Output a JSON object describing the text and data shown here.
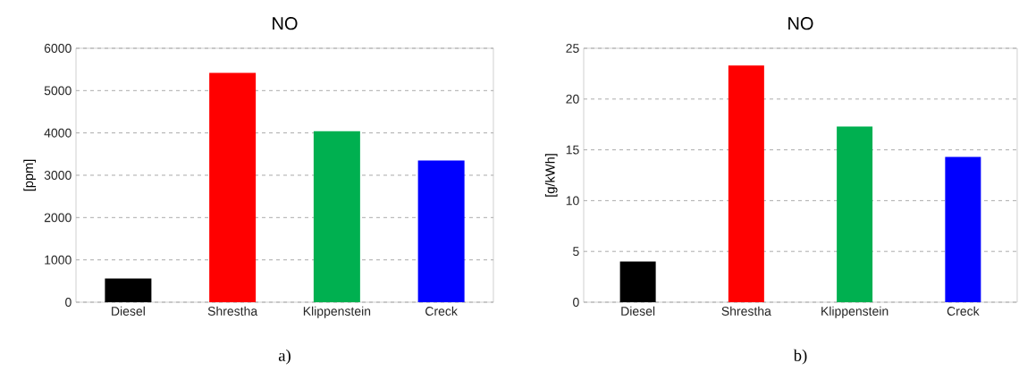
{
  "chart_data": [
    {
      "type": "bar",
      "title": "NO",
      "ylabel": "[ppm]",
      "categories": [
        "Diesel",
        "Shrestha",
        "Klippenstein",
        "Creck"
      ],
      "values": [
        560,
        5420,
        4040,
        3350
      ],
      "colors": [
        "#000000",
        "#ff0000",
        "#00b050",
        "#0000ff"
      ],
      "ylim": [
        0,
        6000
      ],
      "yticks": [
        0,
        1000,
        2000,
        3000,
        4000,
        5000,
        6000
      ],
      "grid": "y",
      "annotations": [
        "a)"
      ]
    },
    {
      "type": "bar",
      "title": "NO",
      "ylabel": "[g/kWh]",
      "categories": [
        "Diesel",
        "Shrestha",
        "Klippenstein",
        "Creck"
      ],
      "values": [
        4.0,
        23.3,
        17.3,
        14.3
      ],
      "colors": [
        "#000000",
        "#ff0000",
        "#00b050",
        "#0000ff"
      ],
      "ylim": [
        0,
        25
      ],
      "yticks": [
        0,
        5,
        10,
        15,
        20,
        25
      ],
      "grid": "y",
      "annotations": [
        "b)"
      ]
    }
  ]
}
